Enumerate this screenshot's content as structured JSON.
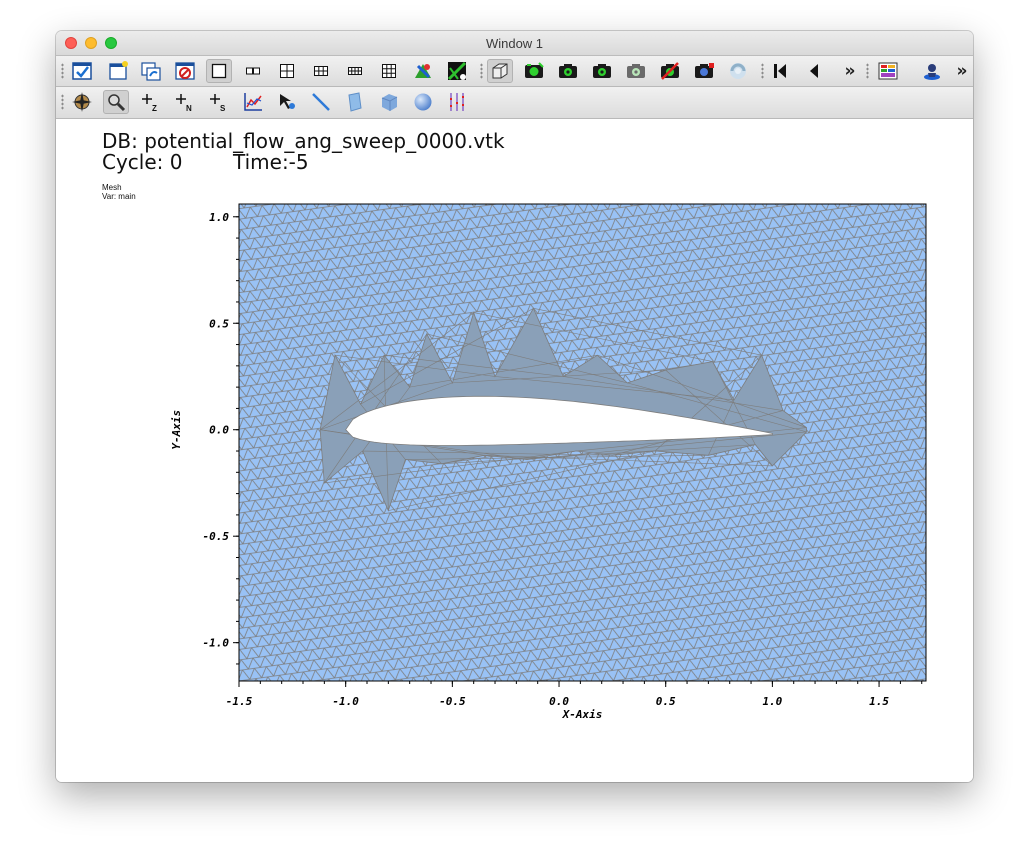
{
  "window": {
    "title": "Window 1"
  },
  "toolbar1": {
    "buttons": [
      {
        "icon": "apply-window-icon",
        "active": false
      },
      {
        "icon": "new-window-icon",
        "active": false
      },
      {
        "icon": "clone-window-icon",
        "active": false
      },
      {
        "icon": "delete-window-icon",
        "active": false
      },
      {
        "icon": "layout-1x1-icon",
        "active": true
      },
      {
        "icon": "layout-1x2-icon",
        "active": false
      },
      {
        "icon": "layout-2x2-icon",
        "active": false
      },
      {
        "icon": "layout-2x3-icon",
        "active": false
      },
      {
        "icon": "layout-2x4-icon",
        "active": false
      },
      {
        "icon": "layout-3x3-icon",
        "active": false
      },
      {
        "icon": "lock-view-icon",
        "active": false
      },
      {
        "icon": "lock-time-icon",
        "active": false
      },
      {
        "icon": "view-3d-icon",
        "active": true
      },
      {
        "icon": "save-view-icon",
        "active": false
      },
      {
        "icon": "camera-view-1-icon",
        "active": false
      },
      {
        "icon": "camera-view-2-icon",
        "active": false
      },
      {
        "icon": "camera-view-3-icon",
        "active": false
      },
      {
        "icon": "camera-disabled-icon",
        "active": false
      },
      {
        "icon": "camera-view-4-icon",
        "active": false
      },
      {
        "icon": "undo-view-icon",
        "active": false
      },
      {
        "icon": "first-frame-icon",
        "active": false
      },
      {
        "icon": "previous-frame-icon",
        "active": false
      },
      {
        "icon": "overflow-chevron-icon",
        "active": false
      },
      {
        "icon": "color-table-icon",
        "active": false
      },
      {
        "icon": "user-tool-icon",
        "active": false
      },
      {
        "icon": "overflow-chevron-icon",
        "active": false
      }
    ]
  },
  "toolbar2": {
    "buttons": [
      {
        "icon": "navigate-compass-icon",
        "active": false
      },
      {
        "icon": "zoom-icon",
        "active": true
      },
      {
        "icon": "zone-pick-icon",
        "label": "Z",
        "active": false
      },
      {
        "icon": "node-pick-icon",
        "label": "N",
        "active": false
      },
      {
        "icon": "spreadsheet-pick-icon",
        "label": "S",
        "active": false
      },
      {
        "icon": "lineout-icon",
        "active": false
      },
      {
        "icon": "point-tool-icon",
        "active": false
      },
      {
        "icon": "line-tool-icon",
        "active": false
      },
      {
        "icon": "plane-tool-icon",
        "active": false
      },
      {
        "icon": "box-tool-icon",
        "active": false
      },
      {
        "icon": "sphere-tool-icon",
        "active": false
      },
      {
        "icon": "axis-restriction-icon",
        "active": false
      }
    ]
  },
  "annotation": {
    "db": "DB: potential_flow_ang_sweep_0000.vtk",
    "cycle": "Cycle: 0",
    "time": "Time:-5",
    "legend_plot": "Mesh",
    "legend_var": "Var: main"
  },
  "plot": {
    "xlabel": "X-Axis",
    "ylabel": "Y-Axis",
    "xticks": [
      "-1.5",
      "-1.0",
      "-0.5",
      "0.0",
      "0.5",
      "1.0",
      "1.5"
    ],
    "yticks": [
      "1.0",
      "0.5",
      "0.0",
      "-0.5",
      "-1.0"
    ],
    "xlim": [
      -1.5,
      1.72
    ],
    "ylim": [
      -1.18,
      1.06
    ],
    "mesh_fill_color": "#99c2f5",
    "mesh_line_color": "#7d7d7d",
    "hole_color": "#ffffff"
  }
}
